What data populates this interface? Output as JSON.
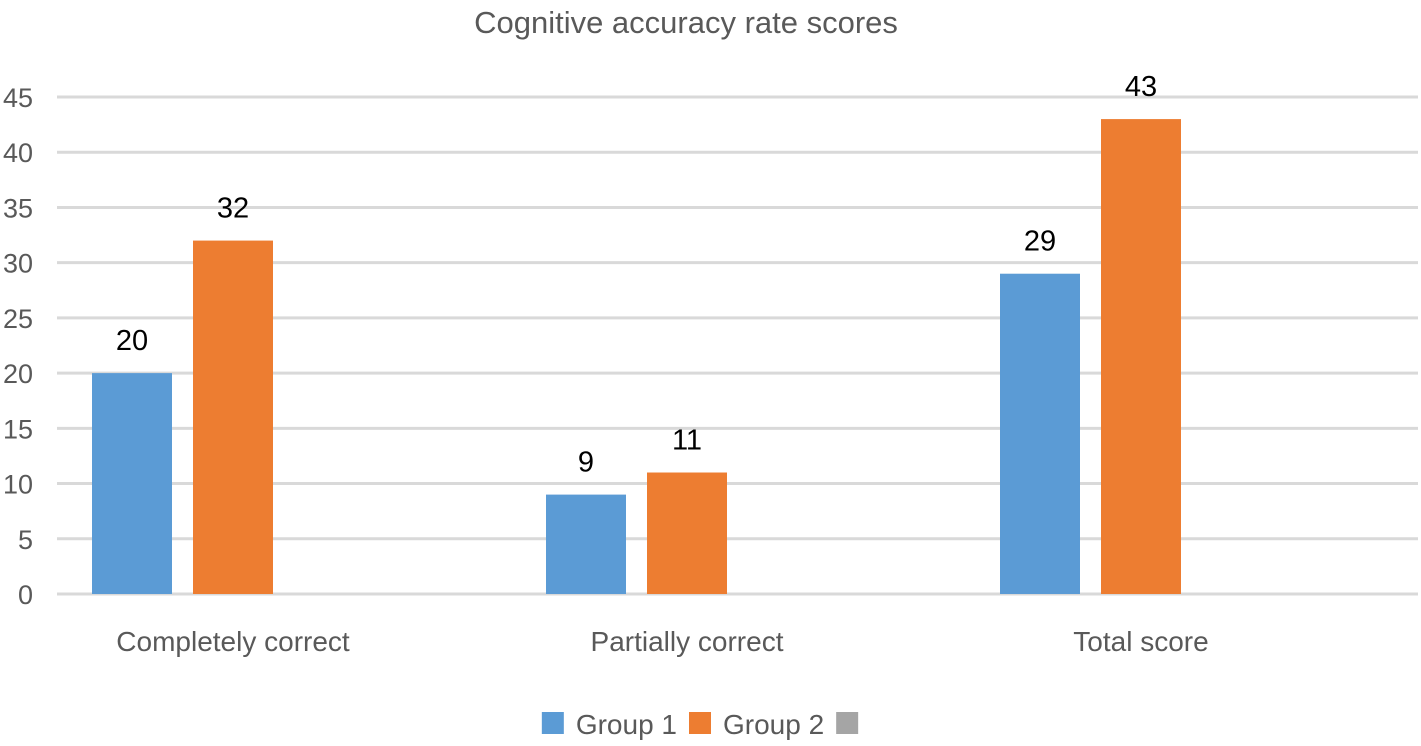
{
  "chart_data": {
    "type": "bar",
    "title": "Cognitive accuracy rate scores",
    "xlabel": "",
    "ylabel": "",
    "categories": [
      "Completely correct",
      "Partially correct",
      "Total score"
    ],
    "series": [
      {
        "name": "Group 1",
        "color": "#5b9bd5",
        "values": [
          20,
          9,
          29
        ]
      },
      {
        "name": "Group 2",
        "color": "#ed7d31",
        "values": [
          32,
          11,
          43
        ]
      },
      {
        "name": "",
        "color": "#a5a5a5",
        "values": [
          null,
          null,
          null
        ]
      }
    ],
    "ylim": [
      0,
      45
    ],
    "yticks": [
      0,
      5,
      10,
      15,
      20,
      25,
      30,
      35,
      40,
      45
    ],
    "grid": true,
    "gridline_color": "#d9d9d9",
    "data_labels": true,
    "legend_position": "bottom"
  }
}
